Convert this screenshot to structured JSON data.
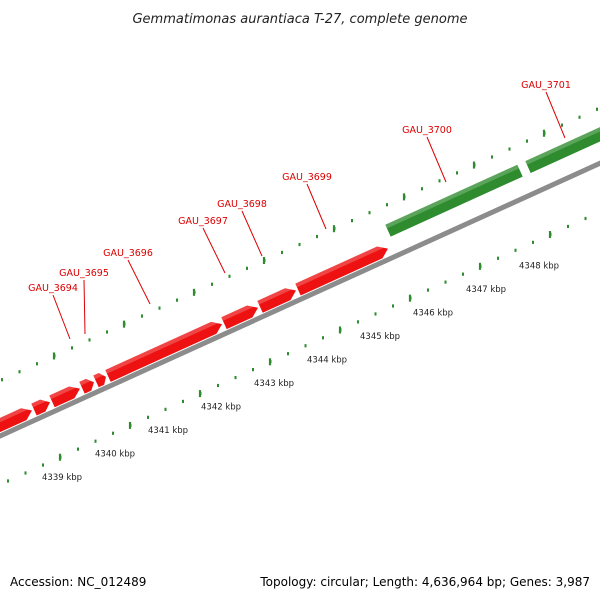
{
  "title": "Gemmatimonas aurantiaca T-27, complete genome",
  "footer": {
    "accession": "Accession: NC_012489",
    "summary": "Topology: circular; Length: 4,636,964 bp; Genes: 3,987"
  },
  "colors": {
    "forward_gene": "#2e8b2e",
    "reverse_gene": "#ee1111",
    "label": "#dd0000",
    "genome_line": "#8c8c8c",
    "dotted_ruler": "#2e8b2e",
    "text": "#222222"
  },
  "scale": {
    "ticks": [
      {
        "label": "4339 kbp"
      },
      {
        "label": "4340 kbp"
      },
      {
        "label": "4341 kbp"
      },
      {
        "label": "4342 kbp"
      },
      {
        "label": "4343 kbp"
      },
      {
        "label": "4344 kbp"
      },
      {
        "label": "4345 kbp"
      },
      {
        "label": "4346 kbp"
      },
      {
        "label": "4347 kbp"
      },
      {
        "label": "4348 kbp"
      }
    ]
  },
  "genes": [
    {
      "name": "GAU_3694",
      "strand": "reverse"
    },
    {
      "name": "GAU_3695",
      "strand": "reverse"
    },
    {
      "name": "GAU_3696",
      "strand": "reverse"
    },
    {
      "name": "GAU_3697",
      "strand": "reverse"
    },
    {
      "name": "GAU_3698",
      "strand": "reverse"
    },
    {
      "name": "GAU_3699",
      "strand": "reverse"
    },
    {
      "name": "GAU_3700",
      "strand": "forward"
    },
    {
      "name": "GAU_3701",
      "strand": "forward"
    }
  ]
}
